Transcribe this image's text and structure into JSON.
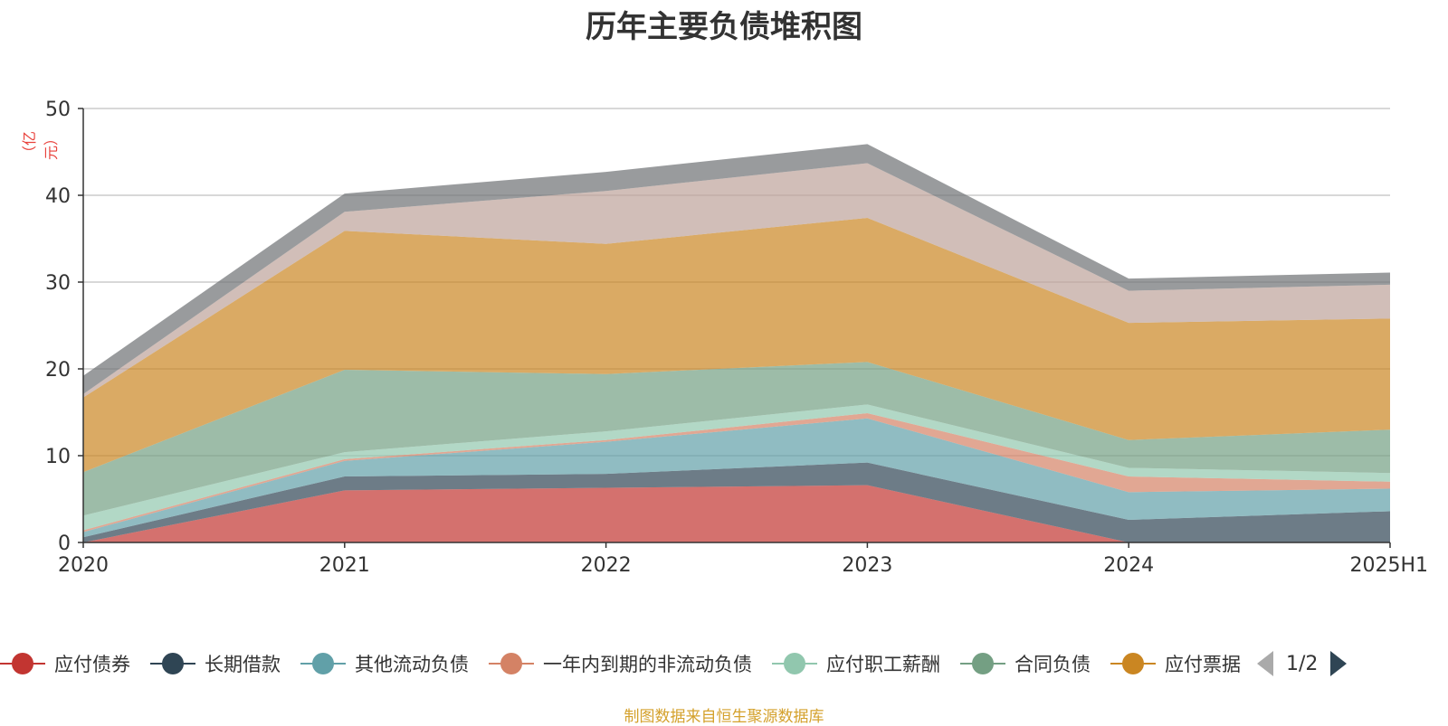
{
  "chart_data": {
    "type": "area",
    "title": "历年主要负债堆积图",
    "unit_label": "（亿元）",
    "categories": [
      "2020",
      "2021",
      "2022",
      "2023",
      "2024",
      "2025H1"
    ],
    "ylim": [
      0,
      50
    ],
    "yticks": [
      0,
      10,
      20,
      30,
      40,
      50
    ],
    "grid": true,
    "stacked": true,
    "legend_position": "bottom",
    "series": [
      {
        "name": "应付债券",
        "color": "#c23531",
        "values": [
          0.0,
          6.0,
          6.3,
          6.6,
          0.0,
          0.0
        ]
      },
      {
        "name": "长期借款",
        "color": "#2f4554",
        "values": [
          0.6,
          1.6,
          1.6,
          2.6,
          2.6,
          3.6
        ]
      },
      {
        "name": "其他流动负债",
        "color": "#61a0a8",
        "values": [
          0.6,
          1.8,
          3.7,
          5.1,
          3.2,
          2.6
        ]
      },
      {
        "name": "一年内到期的非流动负债",
        "color": "#d48265",
        "values": [
          0.2,
          0.2,
          0.2,
          0.6,
          1.8,
          0.8
        ]
      },
      {
        "name": "应付职工薪酬",
        "color": "#91c7ae",
        "values": [
          1.7,
          0.8,
          1.0,
          1.0,
          1.0,
          1.0
        ]
      },
      {
        "name": "合同负债",
        "color": "#749f83",
        "values": [
          5.0,
          9.5,
          6.6,
          4.9,
          3.2,
          5.0
        ]
      },
      {
        "name": "应付票据",
        "color": "#ca8622",
        "values": [
          8.6,
          16.0,
          15.0,
          16.6,
          13.5,
          12.8
        ]
      },
      {
        "name": "",
        "color": "#bda29a",
        "values": [
          0.4,
          2.2,
          6.1,
          6.3,
          3.7,
          3.9
        ]
      },
      {
        "name": "",
        "color": "#6e7074",
        "values": [
          2.1,
          2.1,
          2.2,
          2.2,
          1.4,
          1.4
        ]
      }
    ]
  },
  "legend": {
    "page_indicator": "1/2"
  },
  "source_note": "制图数据来自恒生聚源数据库"
}
